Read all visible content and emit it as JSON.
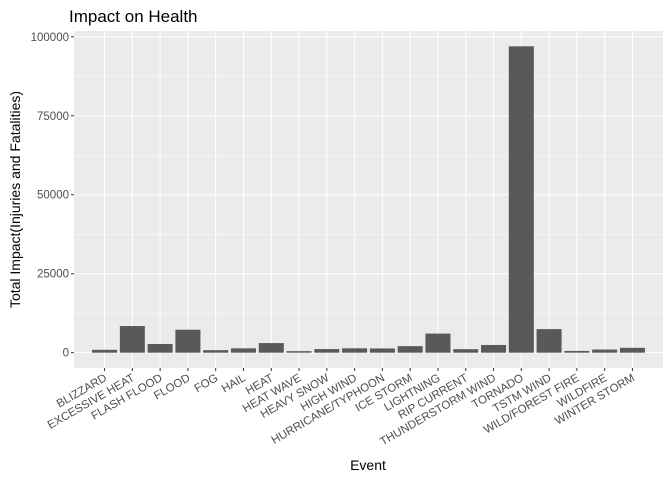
{
  "chart_data": {
    "type": "bar",
    "title": "Impact on Health",
    "xlabel": "Event",
    "ylabel": "Total Impact(Injuries and Fatalities)",
    "categories": [
      "BLIZZARD",
      "EXCESSIVE HEAT",
      "FLASH FLOOD",
      "FLOOD",
      "FOG",
      "HAIL",
      "HEAT",
      "HEAT WAVE",
      "HEAVY SNOW",
      "HIGH WIND",
      "HURRICANE/TYPHOON",
      "ICE STORM",
      "LIGHTNING",
      "RIP CURRENT",
      "THUNDERSTORM WIND",
      "TORNADO",
      "TSTM WIND",
      "WILD/FOREST FIRE",
      "WILDFIRE",
      "WINTER STORM"
    ],
    "values": [
      906,
      8428,
      2755,
      7259,
      796,
      1376,
      3037,
      481,
      1148,
      1385,
      1339,
      2064,
      6046,
      1101,
      2437,
      96979,
      7461,
      557,
      986,
      1527
    ],
    "yticks": [
      0,
      25000,
      50000,
      75000,
      100000
    ],
    "ytick_labels": [
      "0",
      "25000",
      "50000",
      "75000",
      "100000"
    ],
    "ylim": [
      -4849,
      101828
    ],
    "grid": true,
    "bar_color": "#595959",
    "panel_color": "#ebebeb",
    "grid_color": "#ffffff"
  }
}
